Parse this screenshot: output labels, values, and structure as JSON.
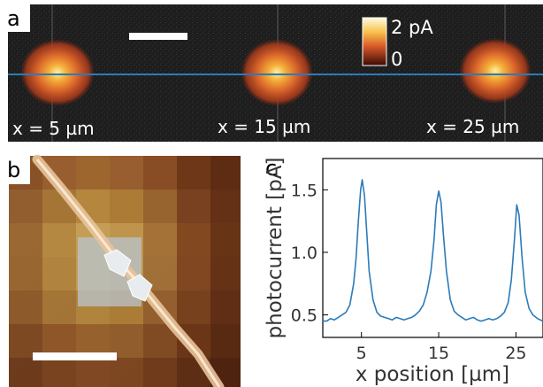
{
  "panel_a": {
    "letter": "a",
    "colorbar": {
      "max_label": "2 pA",
      "min_label": "0"
    },
    "spot_labels": [
      "x = 5 µm",
      "x = 15 µm",
      "x = 25 µm"
    ]
  },
  "panel_b": {
    "letter": "b"
  },
  "panel_c": {
    "letter": "c"
  },
  "chart_data": {
    "type": "line",
    "xlabel": "x position [µm]",
    "ylabel": "photocurrent [pA]",
    "xlim": [
      0,
      28.5
    ],
    "ylim": [
      0.32,
      1.75
    ],
    "xticks": [
      5,
      15,
      25
    ],
    "yticks": [
      0.5,
      1.0,
      1.5
    ],
    "xtick_labels": [
      "5",
      "15",
      "25"
    ],
    "ytick_labels": [
      "0.5",
      "1.0",
      "1.5"
    ],
    "grid": false,
    "series": [
      {
        "color": "#2b7bba",
        "x": [
          0,
          0.5,
          1,
          1.5,
          2,
          2.5,
          3,
          3.5,
          4,
          4.3,
          4.6,
          4.9,
          5.1,
          5.4,
          5.7,
          6,
          6.5,
          7,
          7.5,
          8,
          8.5,
          9,
          9.5,
          10,
          10.5,
          11,
          11.5,
          12,
          12.5,
          13,
          13.5,
          14,
          14.4,
          14.7,
          15,
          15.3,
          15.6,
          16,
          16.5,
          17,
          17.5,
          18,
          18.5,
          19,
          19.5,
          20,
          20.5,
          21,
          21.5,
          22,
          22.5,
          23,
          23.5,
          24,
          24.4,
          24.8,
          25.1,
          25.4,
          25.8,
          26.2,
          26.7,
          27.2,
          27.8,
          28.5
        ],
        "y": [
          0.45,
          0.45,
          0.47,
          0.46,
          0.48,
          0.5,
          0.52,
          0.58,
          0.75,
          0.95,
          1.25,
          1.5,
          1.58,
          1.45,
          1.15,
          0.85,
          0.62,
          0.52,
          0.49,
          0.48,
          0.47,
          0.46,
          0.48,
          0.47,
          0.46,
          0.47,
          0.48,
          0.5,
          0.53,
          0.58,
          0.68,
          0.85,
          1.1,
          1.38,
          1.49,
          1.4,
          1.15,
          0.85,
          0.62,
          0.53,
          0.5,
          0.48,
          0.46,
          0.47,
          0.48,
          0.46,
          0.45,
          0.46,
          0.47,
          0.46,
          0.47,
          0.49,
          0.52,
          0.6,
          0.78,
          1.1,
          1.38,
          1.3,
          0.95,
          0.68,
          0.55,
          0.5,
          0.47,
          0.45
        ]
      }
    ]
  }
}
